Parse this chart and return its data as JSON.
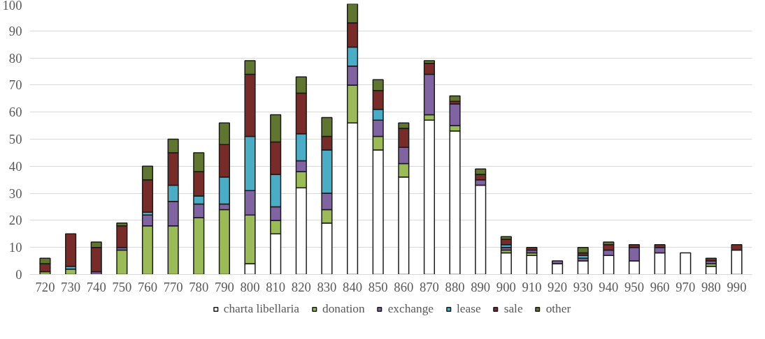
{
  "chart_data": {
    "type": "bar",
    "stacked": true,
    "categories": [
      "720",
      "730",
      "740",
      "750",
      "760",
      "770",
      "780",
      "790",
      "800",
      "810",
      "820",
      "830",
      "840",
      "850",
      "860",
      "870",
      "880",
      "890",
      "900",
      "910",
      "920",
      "930",
      "940",
      "950",
      "960",
      "970",
      "980",
      "990"
    ],
    "series": [
      {
        "name": "charta libellaria",
        "color": "#ffffff",
        "values": [
          0,
          0,
          0,
          0,
          0,
          0,
          0,
          0,
          4,
          15,
          32,
          19,
          56,
          46,
          36,
          57,
          53,
          33,
          8,
          7,
          4,
          5,
          7,
          5,
          8,
          8,
          3,
          9
        ]
      },
      {
        "name": "donation",
        "color": "#9bbb59",
        "values": [
          1,
          2,
          0,
          9,
          18,
          18,
          21,
          24,
          18,
          5,
          6,
          5,
          14,
          5,
          5,
          2,
          2,
          0,
          1,
          1,
          0,
          0,
          0,
          0,
          0,
          0,
          1,
          0
        ]
      },
      {
        "name": "exchange",
        "color": "#8064a2",
        "values": [
          0,
          0,
          1,
          1,
          4,
          9,
          5,
          2,
          9,
          5,
          4,
          6,
          7,
          6,
          6,
          15,
          8,
          2,
          1,
          1,
          1,
          1,
          2,
          5,
          2,
          0,
          1,
          0
        ]
      },
      {
        "name": "lease",
        "color": "#4bacc6",
        "values": [
          0,
          1,
          0,
          0,
          1,
          6,
          3,
          10,
          20,
          12,
          10,
          16,
          7,
          4,
          0,
          0,
          0,
          0,
          1,
          0,
          0,
          1,
          0,
          0,
          0,
          0,
          0,
          0
        ]
      },
      {
        "name": "sale",
        "color": "#772c2a",
        "values": [
          3,
          12,
          9,
          8,
          12,
          12,
          9,
          12,
          23,
          12,
          15,
          5,
          9,
          7,
          7,
          4,
          1,
          2,
          2,
          1,
          0,
          1,
          2,
          1,
          1,
          0,
          1,
          2
        ]
      },
      {
        "name": "other",
        "color": "#5f7530",
        "values": [
          2,
          0,
          2,
          1,
          5,
          5,
          7,
          8,
          5,
          10,
          6,
          7,
          7,
          4,
          2,
          1,
          2,
          2,
          1,
          0,
          0,
          2,
          1,
          0,
          0,
          0,
          0,
          0
        ]
      }
    ],
    "ylim": [
      0,
      100
    ],
    "yticks": [
      0,
      10,
      20,
      30,
      40,
      50,
      60,
      70,
      80,
      90,
      100
    ],
    "grid": "y",
    "legend": "bottom"
  }
}
